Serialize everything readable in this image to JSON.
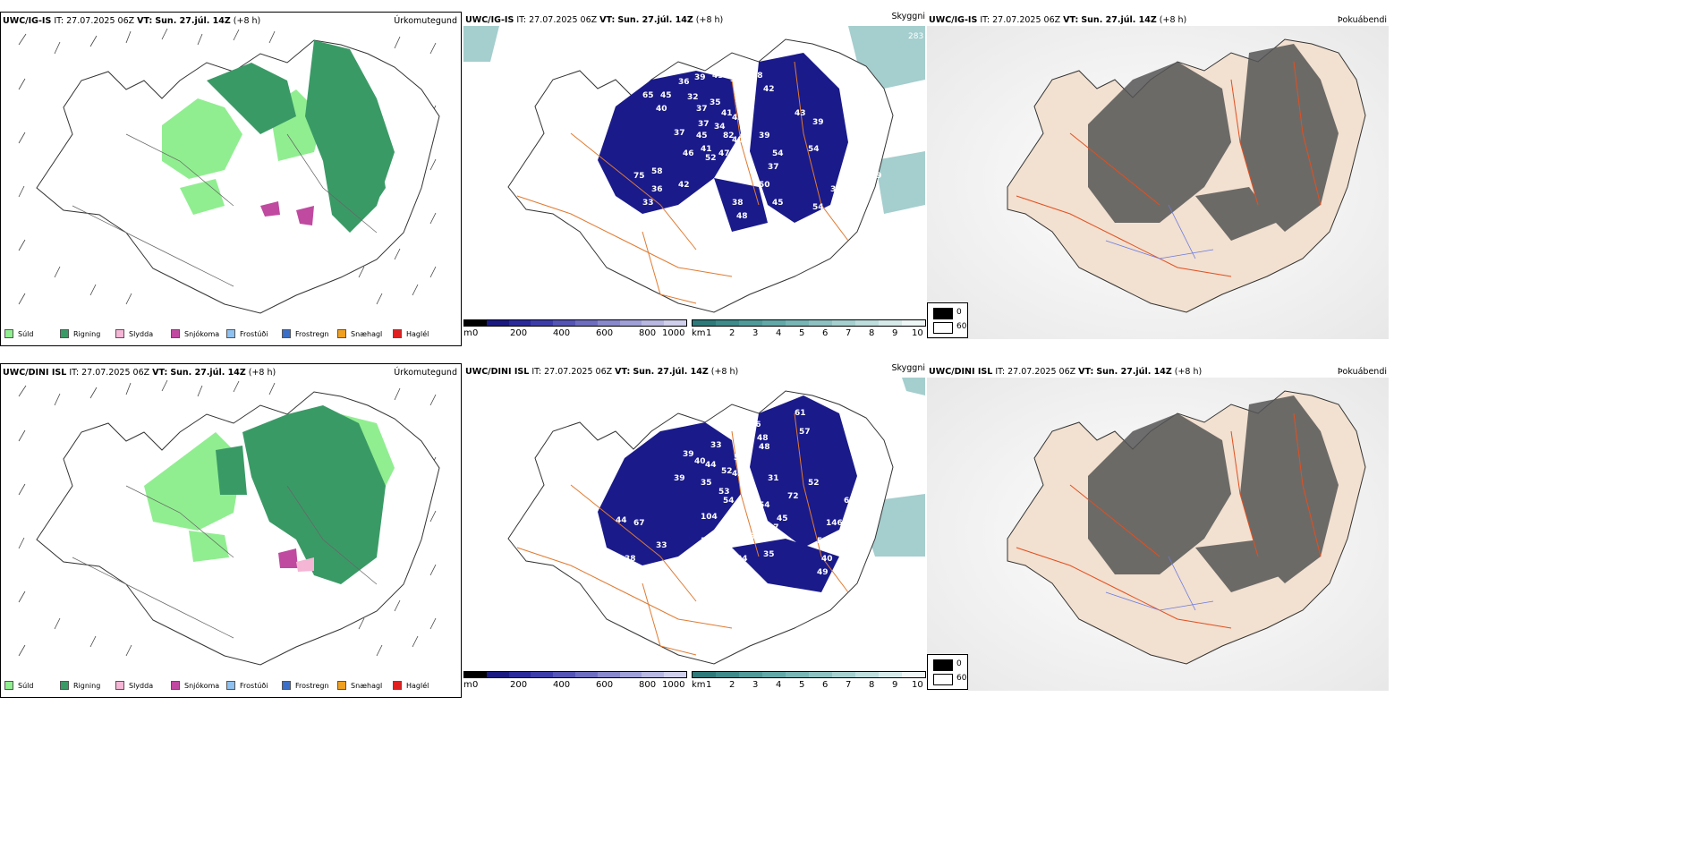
{
  "panels": {
    "precip_top": {
      "model": "UWC/IG-IS",
      "it_label": "IT:",
      "it_value": "27.07.2025 06Z",
      "vt_label": "VT:",
      "vt_value": "Sun. 27.júl. 14Z",
      "lead": "(+8 h)",
      "name": "Úrkomutegund"
    },
    "cloud_top": {
      "model": "UWC/IG-IS",
      "it_label": "IT:",
      "it_value": "27.07.2025 06Z",
      "vt_label": "VT:",
      "vt_value": "Sun. 27.júl. 14Z",
      "lead": "(+8 h)",
      "name": "Skyggni",
      "corner_value": "283",
      "labels": [
        "65",
        "45",
        "36",
        "39",
        "43",
        "39",
        "28",
        "42",
        "40",
        "32",
        "37",
        "35",
        "41",
        "43",
        "37",
        "34",
        "39",
        "40",
        "37",
        "45",
        "41",
        "82",
        "54",
        "46",
        "52",
        "47",
        "43",
        "54",
        "39",
        "58",
        "75",
        "42",
        "37",
        "36",
        "33",
        "40",
        "38",
        "48",
        "45",
        "50",
        "54",
        "37",
        "62",
        "41",
        "39",
        "69"
      ]
    },
    "fog_top": {
      "model": "UWC/IG-IS",
      "it_label": "IT:",
      "it_value": "27.07.2025 06Z",
      "vt_label": "VT:",
      "vt_value": "Sun. 27.júl. 14Z",
      "lead": "(+8 h)",
      "name": "Þokuábendi"
    },
    "precip_bottom": {
      "model": "UWC/DINI ISL",
      "it_label": "IT:",
      "it_value": "27.07.2025 06Z",
      "vt_label": "VT:",
      "vt_value": "Sun. 27.júl. 14Z",
      "lead": "(+8 h)",
      "name": "Úrkomutegund"
    },
    "cloud_bottom": {
      "model": "UWC/DINI ISL",
      "it_label": "IT:",
      "it_value": "27.07.2025 06Z",
      "vt_label": "VT:",
      "vt_value": "Sun. 27.júl. 14Z",
      "lead": "(+8 h)",
      "name": "Skyggni",
      "labels": [
        "61",
        "46",
        "39",
        "39",
        "57",
        "48",
        "33",
        "39",
        "48",
        "50",
        "39",
        "40",
        "44",
        "52",
        "45",
        "39",
        "35",
        "53",
        "54",
        "31",
        "72",
        "69",
        "52",
        "54",
        "52",
        "104",
        "45",
        "37",
        "146",
        "31",
        "35",
        "36",
        "34",
        "35",
        "51",
        "71",
        "38",
        "33",
        "49",
        "40",
        "67",
        "44"
      ]
    },
    "fog_bottom": {
      "model": "UWC/DINI ISL",
      "it_label": "IT:",
      "it_value": "27.07.2025 06Z",
      "vt_label": "VT:",
      "vt_value": "Sun. 27.júl. 14Z",
      "lead": "(+8 h)",
      "name": "Þokuábendi"
    }
  },
  "precip_legend": [
    {
      "label": "Súld",
      "color": "#90ee90"
    },
    {
      "label": "Rigning",
      "color": "#3a9a66"
    },
    {
      "label": "Slydda",
      "color": "#f5b5d5"
    },
    {
      "label": "Snjókoma",
      "color": "#c04aa0"
    },
    {
      "label": "Frostúði",
      "color": "#8ec0f0"
    },
    {
      "label": "Frostregn",
      "color": "#3a6ec8"
    },
    {
      "label": "Snæhagl",
      "color": "#f0a020"
    },
    {
      "label": "Haglél",
      "color": "#e02020"
    }
  ],
  "cloud_base_bar": {
    "unit": "m",
    "ticks": [
      "0",
      "200",
      "400",
      "600",
      "800",
      "1000"
    ],
    "colors": [
      "#000000",
      "#1a1a80",
      "#2a2a9a",
      "#3d3daa",
      "#5555b5",
      "#6e6ec0",
      "#8888cc",
      "#a0a0d8",
      "#b8b8e2",
      "#d0d0ec"
    ]
  },
  "visibility_bar": {
    "unit": "km",
    "ticks": [
      "1",
      "2",
      "3",
      "4",
      "5",
      "6",
      "7",
      "8",
      "9",
      "10"
    ],
    "colors": [
      "#2e7a7a",
      "#3f8a8a",
      "#509a9a",
      "#62a8a8",
      "#78b5b5",
      "#8ec2c2",
      "#a6d0d0",
      "#bedddd",
      "#d6eaea",
      "#eef6f6"
    ]
  },
  "fog_legend": {
    "low_label": "0",
    "high_label": "60",
    "low_color": "#000000",
    "high_color": "#ffffff"
  },
  "colors": {
    "precip_green_light": "#90ee90",
    "precip_green_dark": "#3a9a66",
    "cloud_blue": "#1a1a8a",
    "road_orange": "#e07a30",
    "land_beige": "#f2e0d0",
    "fog_gray": "#555555"
  }
}
